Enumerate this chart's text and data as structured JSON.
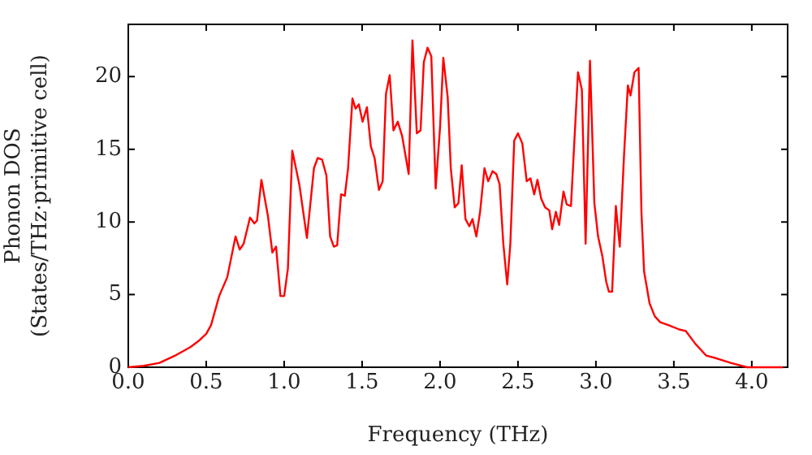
{
  "chart_data": {
    "type": "line",
    "xlabel": "Frequency (THz)",
    "ylabel": "Phonon DOS\n(States/THz·primitive cell)",
    "x": [
      0,
      0.1,
      0.2,
      0.3,
      0.4,
      0.45,
      0.5,
      0.531,
      0.583,
      0.635,
      0.688,
      0.715,
      0.74,
      0.781,
      0.809,
      0.826,
      0.854,
      0.896,
      0.924,
      0.948,
      0.976,
      1.0,
      1.024,
      1.052,
      1.097,
      1.146,
      1.191,
      1.215,
      1.243,
      1.271,
      1.295,
      1.319,
      1.34,
      1.365,
      1.389,
      1.41,
      1.438,
      1.458,
      1.479,
      1.503,
      1.531,
      1.556,
      1.58,
      1.608,
      1.632,
      1.653,
      1.677,
      1.701,
      1.729,
      1.757,
      1.799,
      1.823,
      1.851,
      1.875,
      1.896,
      1.92,
      1.944,
      1.972,
      2.0,
      2.021,
      2.049,
      2.069,
      2.094,
      2.118,
      2.139,
      2.163,
      2.188,
      2.208,
      2.233,
      2.257,
      2.285,
      2.309,
      2.337,
      2.361,
      2.382,
      2.406,
      2.431,
      2.451,
      2.476,
      2.5,
      2.528,
      2.556,
      2.58,
      2.604,
      2.625,
      2.649,
      2.674,
      2.701,
      2.719,
      2.743,
      2.764,
      2.792,
      2.813,
      2.84,
      2.885,
      2.91,
      2.934,
      2.962,
      2.99,
      3.014,
      3.042,
      3.066,
      3.083,
      3.104,
      3.128,
      3.153,
      3.18,
      3.205,
      3.222,
      3.247,
      3.274,
      3.292,
      3.309,
      3.344,
      3.378,
      3.413,
      3.465,
      3.535,
      3.576,
      3.639,
      3.708,
      3.778,
      3.865,
      3.969,
      4.02,
      4.2
    ],
    "series": [
      {
        "color": "#ff0000",
        "values": [
          0,
          0.1,
          0.3,
          0.8,
          1.4,
          1.8,
          2.3,
          2.9,
          4.9,
          6.2,
          9.0,
          8.1,
          8.5,
          10.3,
          9.9,
          10.1,
          12.9,
          10.4,
          7.9,
          8.3,
          4.9,
          4.9,
          6.8,
          14.9,
          12.6,
          8.9,
          13.7,
          14.4,
          14.3,
          13.2,
          9.0,
          8.3,
          8.4,
          11.9,
          11.8,
          13.7,
          18.5,
          17.8,
          18.1,
          16.9,
          17.9,
          15.2,
          14.4,
          12.2,
          12.8,
          18.8,
          20.1,
          16.3,
          16.9,
          15.9,
          13.3,
          22.5,
          16.1,
          16.3,
          21.0,
          22.0,
          21.4,
          12.3,
          16.5,
          21.3,
          18.6,
          13.7,
          11.0,
          11.3,
          13.9,
          10.2,
          9.7,
          10.2,
          9.0,
          10.7,
          13.7,
          12.8,
          13.5,
          13.3,
          12.6,
          8.5,
          5.7,
          8.5,
          15.6,
          16.1,
          15.4,
          12.8,
          13.0,
          11.9,
          12.9,
          11.6,
          11.0,
          10.8,
          9.5,
          10.7,
          9.8,
          12.1,
          11.2,
          11.1,
          20.3,
          19.1,
          8.5,
          21.1,
          11.3,
          9.0,
          7.6,
          5.9,
          5.2,
          5.2,
          11.1,
          8.3,
          14.5,
          19.4,
          18.7,
          20.3,
          20.6,
          10.7,
          6.6,
          4.4,
          3.5,
          3.1,
          2.9,
          2.6,
          2.5,
          1.6,
          0.8,
          0.6,
          0.3,
          0,
          0,
          0
        ]
      }
    ],
    "xlim": [
      0,
      4.23
    ],
    "xticks": [
      {
        "value": 0,
        "label": "0.0"
      },
      {
        "value": 0.5,
        "label": "0.5"
      },
      {
        "value": 1,
        "label": "1.0"
      },
      {
        "value": 1.5,
        "label": "1.5"
      },
      {
        "value": 2,
        "label": "2.0"
      },
      {
        "value": 2.5,
        "label": "2.5"
      },
      {
        "value": 3,
        "label": "3.0"
      },
      {
        "value": 3.5,
        "label": "3.5"
      },
      {
        "value": 4,
        "label": "4.0"
      }
    ],
    "ylim": [
      0,
      23.6
    ],
    "yticks": [
      0,
      5,
      10,
      15,
      20
    ],
    "grid": false,
    "legend": false,
    "marker": "none",
    "line_style": "solid"
  }
}
